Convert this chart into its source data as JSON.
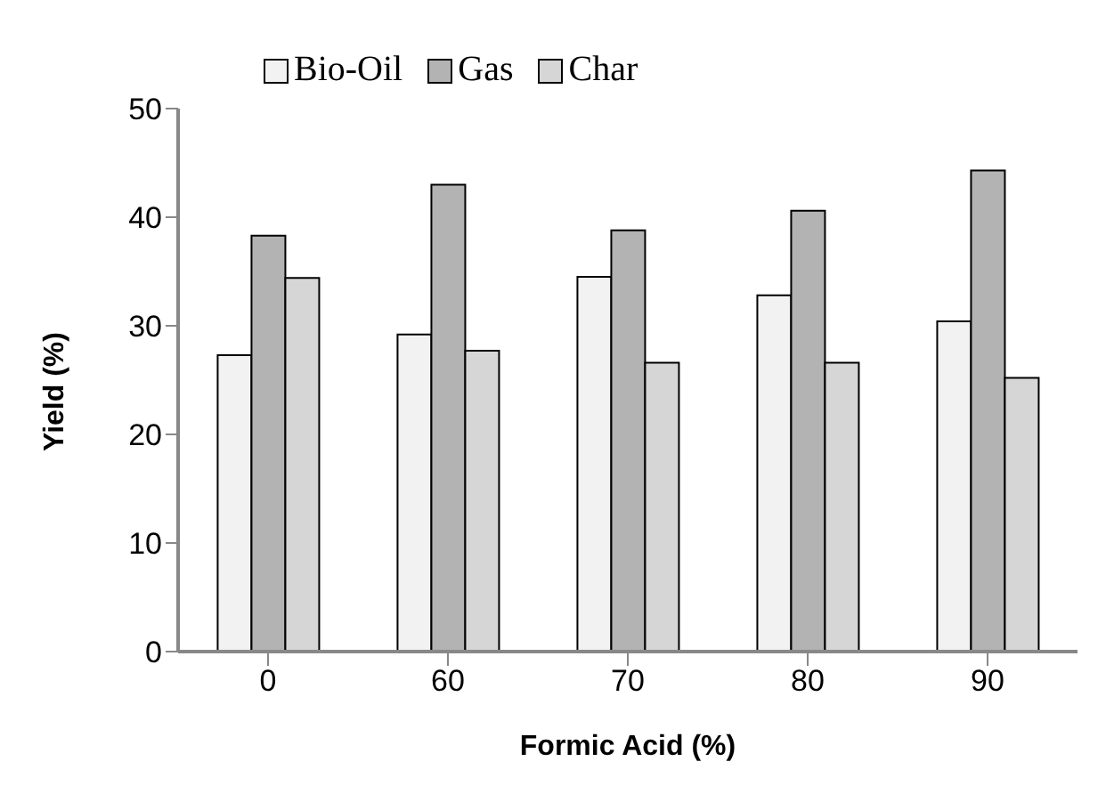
{
  "chart_data": {
    "type": "bar",
    "xlabel": "Formic Acid (%)",
    "ylabel": "Yield (%)",
    "categories": [
      "0",
      "60",
      "70",
      "80",
      "90"
    ],
    "series": [
      {
        "name": "Bio-Oil",
        "color": "#f2f2f2",
        "values": [
          27.3,
          29.2,
          34.5,
          32.8,
          30.4
        ]
      },
      {
        "name": "Gas",
        "color": "#b3b3b3",
        "values": [
          38.3,
          43.0,
          38.8,
          40.6,
          44.3
        ]
      },
      {
        "name": "Char",
        "color": "#d6d6d6",
        "values": [
          34.4,
          27.7,
          26.6,
          26.6,
          25.2
        ]
      }
    ],
    "ylim": [
      0,
      50
    ],
    "yticks": [
      0,
      10,
      20,
      30,
      40,
      50
    ],
    "grid": false,
    "legend": "top"
  }
}
